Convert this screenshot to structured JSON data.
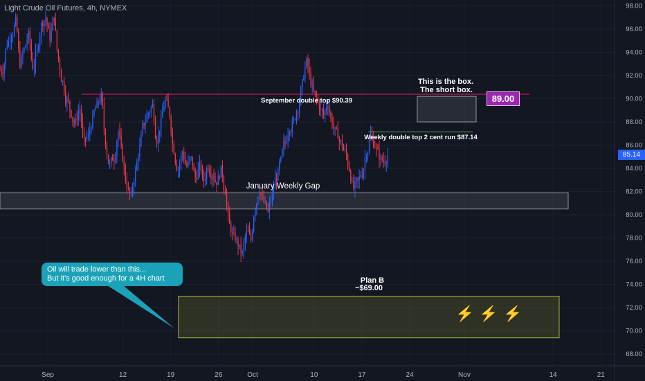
{
  "header": {
    "symbol": "Light Crude Oil Futures, 4h, NYMEX"
  },
  "annotations": {
    "box_note_line1": "This is the box.",
    "box_note_line2": "The short box.",
    "label_89": "89.00",
    "sept_double_top": "September double top $90.39",
    "weekly_double_top": "Weekly double top 2 cent run $87.14",
    "jan_gap": "January Weekly Gap",
    "plan_b_line1": "Plan B",
    "plan_b_line2": "~$69.00",
    "note_line1": "Oil will trade lower than this...",
    "note_line2": "But it's good enough for a 4H chart",
    "bolt_icon": "lightning-icon"
  },
  "price_tag": {
    "value": "85.14",
    "color": "#2962ff"
  },
  "colors": {
    "up": "#2962ff",
    "down": "#f23645",
    "background": "#131722",
    "note": "#1ba2b8",
    "accent": "#9c27b0"
  },
  "chart_data": {
    "type": "candlestick",
    "ylim": [
      67,
      98.5
    ],
    "y_ticks": [
      68,
      70,
      72,
      74,
      76,
      78,
      80,
      82,
      84,
      86,
      88,
      90,
      92,
      94,
      96,
      98
    ],
    "x_ticks": [
      "Sep",
      "12",
      "19",
      "26",
      "Oct",
      "10",
      "17",
      "24",
      "Nov",
      "14",
      "21"
    ],
    "x_range": [
      "2022-08-25",
      "2022-11-23"
    ],
    "tick_dates": [
      "2022-09-01",
      "2022-09-12",
      "2022-09-19",
      "2022-09-26",
      "2022-10-01",
      "2022-10-10",
      "2022-10-17",
      "2022-10-24",
      "2022-11-01",
      "2022-11-14",
      "2022-11-21"
    ],
    "closes": [
      92.5,
      94.8,
      95.6,
      96.6,
      93.1,
      94.2,
      95.4,
      92.8,
      94.0,
      96.3,
      97.0,
      95.3,
      97.1,
      93.4,
      91.4,
      89.8,
      88.8,
      87.9,
      89.1,
      86.2,
      86.7,
      88.1,
      89.3,
      90.1,
      86.4,
      84.2,
      84.9,
      87.2,
      85.0,
      82.6,
      81.5,
      83.6,
      85.7,
      87.9,
      88.8,
      89.4,
      86.5,
      87.9,
      89.8,
      88.7,
      85.6,
      84.0,
      85.4,
      84.2,
      84.8,
      83.2,
      84.1,
      83.0,
      84.3,
      83.6,
      82.9,
      83.8,
      82.1,
      79.1,
      78.0,
      77.5,
      76.6,
      78.4,
      77.9,
      80.8,
      82.3,
      81.1,
      80.2,
      81.6,
      83.3,
      84.6,
      86.2,
      87.6,
      88.0,
      89.3,
      91.2,
      93.1,
      91.5,
      90.2,
      89.4,
      88.6,
      89.7,
      88.0,
      87.0,
      86.2,
      85.4,
      84.0,
      82.3,
      82.8,
      83.6,
      85.4,
      86.8,
      86.0,
      85.1,
      84.6,
      85.14
    ],
    "series": [
      {
        "name": "",
        "type": "hline",
        "y": 90.39
      },
      {
        "name": "",
        "type": "hline",
        "y": 87.14
      }
    ],
    "zones": [
      {
        "name": "January Weekly Gap",
        "y_range": [
          80.5,
          81.9
        ]
      },
      {
        "name": "short box",
        "y_range": [
          88.0,
          90.2
        ]
      },
      {
        "name": "Plan B",
        "y_range": [
          69.4,
          73.0
        ]
      }
    ]
  }
}
